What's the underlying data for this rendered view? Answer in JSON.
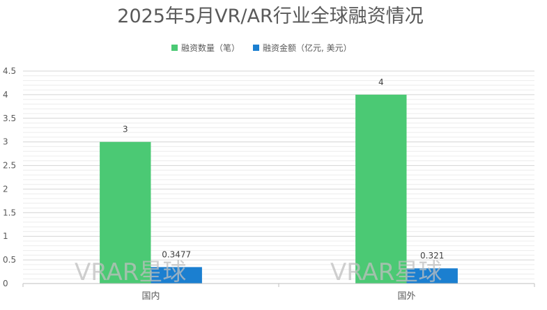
{
  "chart_data": {
    "type": "bar",
    "title": "2025年5月VR/AR行业全球融资情况",
    "categories": [
      "国内",
      "国外"
    ],
    "series": [
      {
        "name": "融资数量（笔）",
        "color": "#4bc974",
        "values": [
          3,
          4
        ],
        "labels": [
          "3",
          "4"
        ]
      },
      {
        "name": "融资金额（亿元, 美元）",
        "color": "#1b7fd0",
        "values": [
          0.3477,
          0.321
        ],
        "labels": [
          "0.3477",
          "0.321"
        ]
      }
    ],
    "ylim": [
      0,
      4.5
    ],
    "yticks": [
      "0",
      "0.5",
      "1",
      "1.5",
      "2",
      "2.5",
      "3",
      "3.5",
      "4",
      "4.5"
    ],
    "grid": true,
    "legend_position": "top",
    "xlabel": "",
    "ylabel": ""
  },
  "watermark": "VRAR星球"
}
